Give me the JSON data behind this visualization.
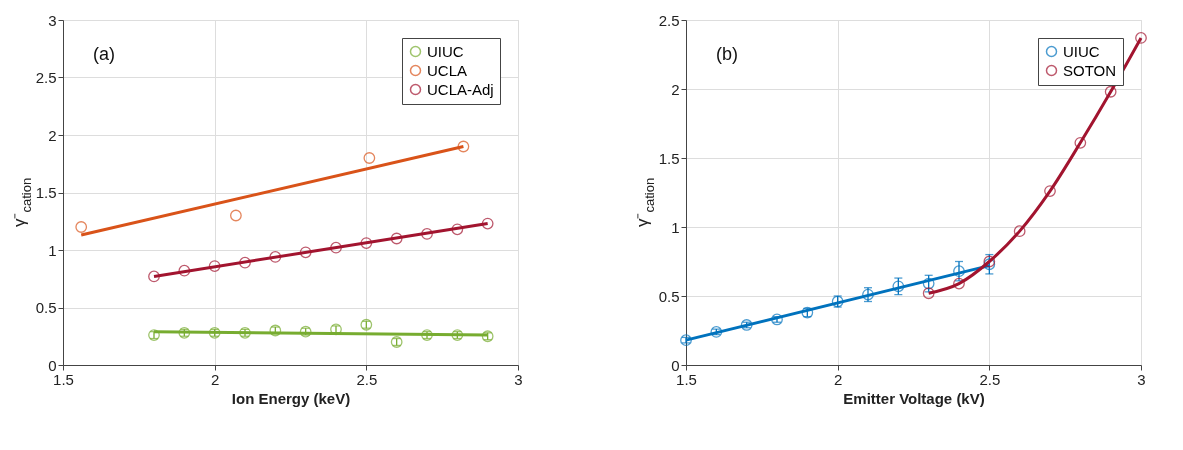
{
  "chart_data": [
    {
      "type": "scatter",
      "xlabel": "Ion Energy (keV)",
      "ylabel": "γ⁻$_{cation}$",
      "annotations": [
        "(a)"
      ],
      "xlim": [
        1.5,
        3
      ],
      "xticks": [
        1.5,
        2,
        2.5,
        3
      ],
      "ylim": [
        0,
        3
      ],
      "yticks": [
        0,
        0.5,
        1,
        1.5,
        2,
        2.5,
        3
      ],
      "grid": true,
      "legend": "top right",
      "marker": "circle",
      "series": [
        {
          "name": "UIUC",
          "color": "#77ac30",
          "x": [
            1.8,
            1.9,
            2.0,
            2.1,
            2.2,
            2.3,
            2.4,
            2.5,
            2.6,
            2.7,
            2.8,
            2.9
          ],
          "values": [
            0.26,
            0.28,
            0.28,
            0.28,
            0.3,
            0.29,
            0.31,
            0.35,
            0.2,
            0.26,
            0.26,
            0.25
          ],
          "errors": [
            0.03,
            0.03,
            0.03,
            0.03,
            0.03,
            0.03,
            0.03,
            0.03,
            0.03,
            0.03,
            0.03,
            0.03
          ]
        },
        {
          "type": "line",
          "marker": "none",
          "color": "#77ac30",
          "x": [
            1.8,
            2.9
          ],
          "values": [
            0.29,
            0.26
          ]
        },
        {
          "name": "UCLA",
          "color": "#d95319",
          "x": [
            1.56,
            2.07,
            2.51,
            2.82
          ],
          "values": [
            1.2,
            1.3,
            1.8,
            1.9
          ]
        },
        {
          "type": "line",
          "marker": "none",
          "color": "#d95319",
          "x": [
            1.56,
            2.82
          ],
          "values": [
            1.13,
            1.9
          ]
        },
        {
          "name": "UCLA-Adj",
          "color": "#a2142f",
          "x": [
            1.8,
            1.9,
            2.0,
            2.1,
            2.2,
            2.3,
            2.4,
            2.5,
            2.6,
            2.7,
            2.8,
            2.9
          ],
          "values": [
            0.77,
            0.82,
            0.86,
            0.89,
            0.94,
            0.98,
            1.02,
            1.06,
            1.1,
            1.14,
            1.18,
            1.23
          ]
        },
        {
          "type": "line",
          "marker": "none",
          "color": "#a2142f",
          "x": [
            1.8,
            2.9
          ],
          "values": [
            0.77,
            1.23
          ]
        }
      ]
    },
    {
      "type": "scatter",
      "xlabel": "Emitter Voltage (kV)",
      "ylabel": "γ⁻$_{cation}$",
      "annotations": [
        "(b)"
      ],
      "xlim": [
        1.5,
        3
      ],
      "xticks": [
        1.5,
        2,
        2.5,
        3
      ],
      "ylim": [
        0,
        2.5
      ],
      "yticks": [
        0,
        0.5,
        1,
        1.5,
        2,
        2.5
      ],
      "grid": true,
      "legend": "top right",
      "marker": "circle",
      "series": [
        {
          "name": "UIUC",
          "color": "#0072bd",
          "x": [
            1.5,
            1.6,
            1.7,
            1.8,
            1.9,
            2.0,
            2.1,
            2.2,
            2.3,
            2.4,
            2.5
          ],
          "values": [
            0.18,
            0.24,
            0.29,
            0.33,
            0.38,
            0.46,
            0.51,
            0.57,
            0.59,
            0.68,
            0.73
          ],
          "errors": [
            0.02,
            0.02,
            0.02,
            0.02,
            0.03,
            0.04,
            0.05,
            0.06,
            0.06,
            0.07,
            0.07
          ]
        },
        {
          "type": "line",
          "marker": "none",
          "color": "#0072bd",
          "x": [
            1.5,
            2.5
          ],
          "values": [
            0.18,
            0.72
          ]
        },
        {
          "name": "SOTON",
          "type": "line",
          "marker": "circle",
          "color": "#a2142f",
          "x": [
            2.3,
            2.4,
            2.5,
            2.6,
            2.7,
            2.8,
            2.9,
            3.0
          ],
          "values": [
            0.52,
            0.59,
            0.75,
            0.97,
            1.26,
            1.61,
            1.98,
            2.37
          ]
        }
      ]
    }
  ]
}
